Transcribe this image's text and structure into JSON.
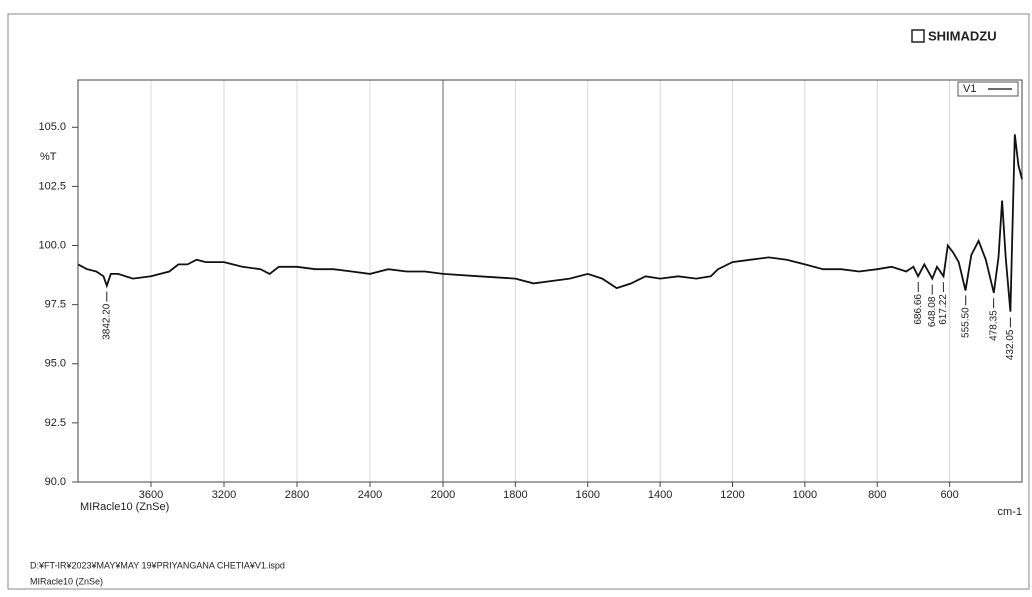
{
  "chart_data": {
    "type": "line",
    "brand": "SHIMADZU",
    "y_label": "%T",
    "x_label": "cm-1",
    "accessory": "MIRacle10 (ZnSe)",
    "footer": [
      "D:¥FT-IR¥2023¥MAY¥MAY 19¥PRIYANGANA CHETIA¥V1.ispd",
      "MIRacle10 (ZnSe)"
    ],
    "xlim": [
      4000,
      400
    ],
    "x_scale_break": 2000,
    "ylim": [
      90,
      107
    ],
    "xticks": [
      3600,
      3200,
      2800,
      2400,
      2000,
      1800,
      1600,
      1400,
      1200,
      1000,
      800,
      600
    ],
    "yticks": [
      {
        "value": 90,
        "label": "90.0"
      },
      {
        "value": 92.5,
        "label": "92.5"
      },
      {
        "value": 95,
        "label": "95.0"
      },
      {
        "value": 97.5,
        "label": "97.5"
      },
      {
        "value": 100,
        "label": "100.0"
      },
      {
        "value": 102.5,
        "label": "102.5"
      },
      {
        "value": 105,
        "label": "105.0"
      }
    ],
    "grid": true,
    "legend": "top-right",
    "series": [
      {
        "name": "V1",
        "color": "#111111",
        "x": [
          4000,
          3950,
          3900,
          3860,
          3842,
          3820,
          3780,
          3700,
          3600,
          3500,
          3450,
          3400,
          3350,
          3300,
          3200,
          3100,
          3000,
          2950,
          2900,
          2800,
          2700,
          2600,
          2500,
          2400,
          2300,
          2200,
          2100,
          2000,
          1900,
          1800,
          1750,
          1700,
          1650,
          1600,
          1560,
          1520,
          1480,
          1440,
          1400,
          1350,
          1300,
          1260,
          1240,
          1200,
          1150,
          1100,
          1050,
          1000,
          950,
          900,
          850,
          800,
          760,
          720,
          700,
          687,
          670,
          648,
          635,
          617,
          605,
          590,
          575,
          556,
          540,
          520,
          500,
          478,
          465,
          455,
          445,
          432,
          420,
          410,
          400
        ],
        "values": [
          99.2,
          99.0,
          98.9,
          98.7,
          98.3,
          98.8,
          98.8,
          98.6,
          98.7,
          98.9,
          99.2,
          99.2,
          99.4,
          99.3,
          99.3,
          99.1,
          99.0,
          98.8,
          99.1,
          99.1,
          99.0,
          99.0,
          98.9,
          98.8,
          99.0,
          98.9,
          98.9,
          98.8,
          98.7,
          98.6,
          98.4,
          98.5,
          98.6,
          98.8,
          98.6,
          98.2,
          98.4,
          98.7,
          98.6,
          98.7,
          98.6,
          98.7,
          99.0,
          99.3,
          99.4,
          99.5,
          99.4,
          99.2,
          99.0,
          99.0,
          98.9,
          99.0,
          99.1,
          98.9,
          99.1,
          98.7,
          99.2,
          98.6,
          99.1,
          98.7,
          100.0,
          99.7,
          99.3,
          98.1,
          99.6,
          100.2,
          99.4,
          98.0,
          99.5,
          101.9,
          99.5,
          97.2,
          104.7,
          103.4,
          102.8
        ]
      }
    ],
    "peak_labels": [
      {
        "value": 3842.2,
        "label": "3842.20"
      },
      {
        "value": 686.66,
        "label": "686.66"
      },
      {
        "value": 648.08,
        "label": "648.08"
      },
      {
        "value": 617.22,
        "label": "617.22"
      },
      {
        "value": 555.5,
        "label": "555.50"
      },
      {
        "value": 478.35,
        "label": "478.35"
      },
      {
        "value": 432.05,
        "label": "432.05"
      }
    ]
  }
}
